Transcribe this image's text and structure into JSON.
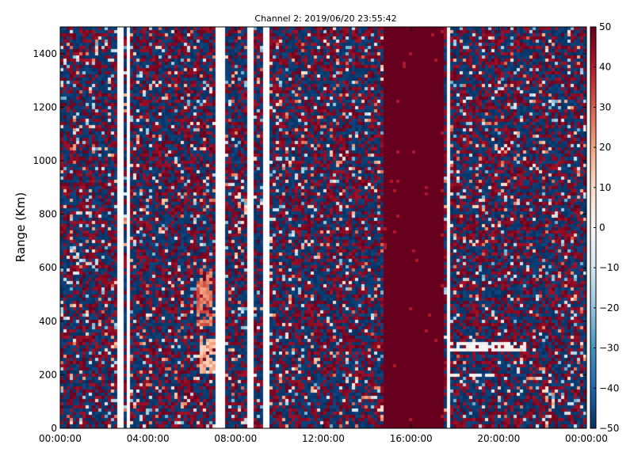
{
  "chart_data": {
    "type": "heatmap",
    "title": "Channel 2: 2019/06/20 23:55:42",
    "xlabel": "",
    "ylabel": "Range (Km)",
    "x_range_hours": [
      0,
      24
    ],
    "y_range_km": [
      0,
      1500
    ],
    "x_ticks": [
      {
        "label": "00:00:00",
        "value": 0
      },
      {
        "label": "04:00:00",
        "value": 4
      },
      {
        "label": "08:00:00",
        "value": 8
      },
      {
        "label": "12:00:00",
        "value": 12
      },
      {
        "label": "16:00:00",
        "value": 16
      },
      {
        "label": "20:00:00",
        "value": 20
      },
      {
        "label": "00:00:00",
        "value": 24
      }
    ],
    "y_ticks": [
      {
        "label": "0",
        "value": 0
      },
      {
        "label": "200",
        "value": 200
      },
      {
        "label": "400",
        "value": 400
      },
      {
        "label": "600",
        "value": 600
      },
      {
        "label": "800",
        "value": 800
      },
      {
        "label": "1000",
        "value": 1000
      },
      {
        "label": "1200",
        "value": 1200
      },
      {
        "label": "1400",
        "value": 1400
      }
    ],
    "colorbar": {
      "range": [
        -50,
        50
      ],
      "colormap": "RdBu_r",
      "ticks": [
        {
          "label": "50",
          "value": 50
        },
        {
          "label": "40",
          "value": 40
        },
        {
          "label": "30",
          "value": 30
        },
        {
          "label": "20",
          "value": 20
        },
        {
          "label": "10",
          "value": 10
        },
        {
          "label": "0",
          "value": 0
        },
        {
          "label": "−10",
          "value": -10
        },
        {
          "label": "−20",
          "value": -20
        },
        {
          "label": "−30",
          "value": -30
        },
        {
          "label": "−40",
          "value": -40
        },
        {
          "label": "−50",
          "value": -50
        }
      ]
    },
    "data_gaps_hours": [
      [
        2.65,
        2.82
      ],
      [
        3.05,
        3.2
      ],
      [
        7.1,
        7.45
      ],
      [
        8.6,
        8.85
      ],
      [
        9.3,
        9.55
      ],
      [
        17.6,
        17.75
      ]
    ],
    "saturated_block_hours": [
      14.75,
      17.55
    ],
    "saturated_value": 50,
    "features": [
      {
        "start_hour": 6.3,
        "end_hour": 7.2,
        "range_km": [
          200,
          330
        ],
        "value_range": [
          10,
          25
        ]
      },
      {
        "start_hour": 6.2,
        "end_hour": 7.0,
        "range_km": [
          380,
          600
        ],
        "value_range": [
          20,
          35
        ]
      },
      {
        "start_hour": 17.8,
        "end_hour": 19.8,
        "range_km": [
          190,
          200
        ],
        "value_range": [
          -5,
          5
        ]
      },
      {
        "start_hour": 17.8,
        "end_hour": 21.2,
        "range_km": [
          290,
          320
        ],
        "value_range": [
          -5,
          5
        ]
      }
    ],
    "background_value_set": [
      -50,
      50
    ]
  }
}
